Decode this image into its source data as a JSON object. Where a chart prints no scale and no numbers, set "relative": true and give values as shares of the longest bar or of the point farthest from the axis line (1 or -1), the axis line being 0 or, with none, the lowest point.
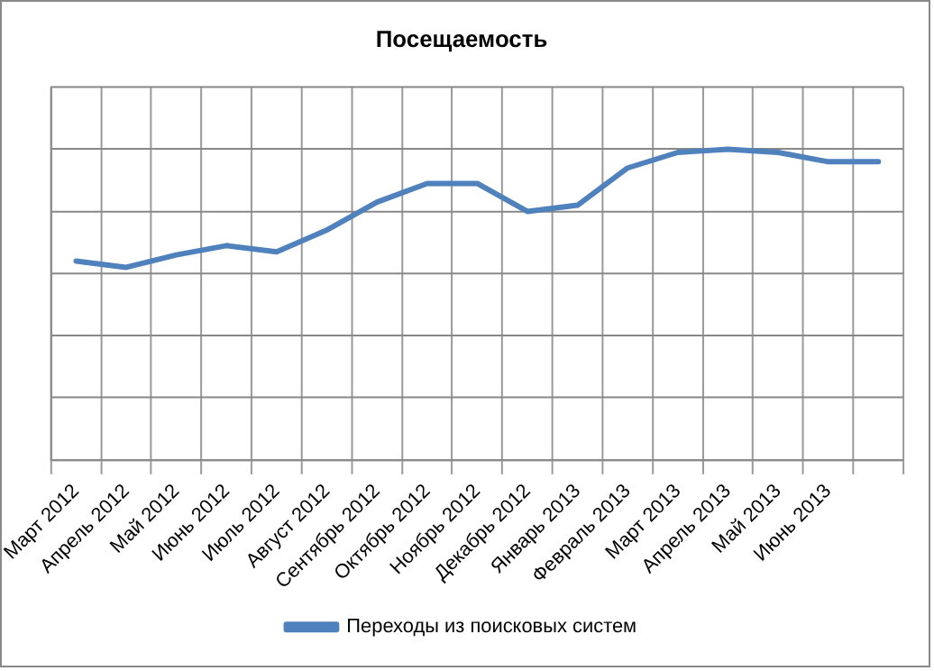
{
  "chart_data": {
    "type": "line",
    "title": "Посещаемость",
    "relative": true,
    "categories": [
      "Март 2012",
      "Апрель 2012",
      "Май 2012",
      "Июнь 2012",
      "Июль 2012",
      "Август 2012",
      "Сентябрь 2012",
      "Октябрь 2012",
      "Ноябрь 2012",
      "Декабрь 2012",
      "Январь 2013",
      "Февраль 2013",
      "Март 2013",
      "Апрель 2013",
      "Май 2013",
      "Июнь 2013",
      null
    ],
    "series": [
      {
        "name": "Переходы из поисковых систем",
        "color": "#4f81bd",
        "values": [
          0.64,
          0.62,
          0.66,
          0.69,
          0.67,
          0.74,
          0.83,
          0.89,
          0.89,
          0.8,
          0.82,
          0.94,
          0.99,
          1,
          0.99,
          0.96,
          0.96
        ]
      }
    ],
    "grid": true,
    "legend": "bottom",
    "marker": "none",
    "line_style": "solid"
  }
}
